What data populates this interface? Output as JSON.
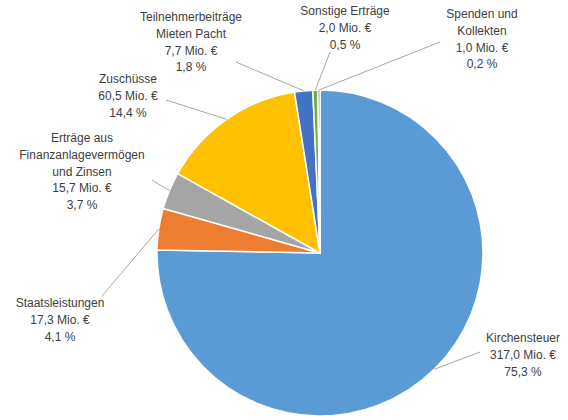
{
  "chart_data": {
    "type": "pie",
    "categories": [
      "Kirchensteuer",
      "Staatsleistungen",
      "Erträge aus\nFinanzanlagevermögen\nund Zinsen",
      "Zuschüsse",
      "Teilnehmerbeiträge\nMieten Pacht",
      "Sonstige Erträge",
      "Spenden und\nKollekten"
    ],
    "values": [
      75.3,
      4.1,
      3.7,
      14.4,
      1.8,
      0.5,
      0.2
    ],
    "value_labels": [
      "75,3 %",
      "4,1 %",
      "3,7 %",
      "14,4 %",
      "1,8 %",
      "0,5 %",
      "0,2 %"
    ],
    "amounts": [
      317.0,
      17.3,
      15.7,
      60.5,
      7.7,
      2.0,
      1.0
    ],
    "amount_labels": [
      "317,0 Mio. €",
      "17,3 Mio. €",
      "15,7 Mio. €",
      "60,5 Mio. €",
      "7,7 Mio. €",
      "2,0 Mio. €",
      "1,0 Mio. €"
    ],
    "colors": [
      "#5b9bd5",
      "#ed7d31",
      "#a5a5a5",
      "#ffc000",
      "#4472c4",
      "#70ad47",
      "#264478"
    ],
    "data_labels": true
  }
}
